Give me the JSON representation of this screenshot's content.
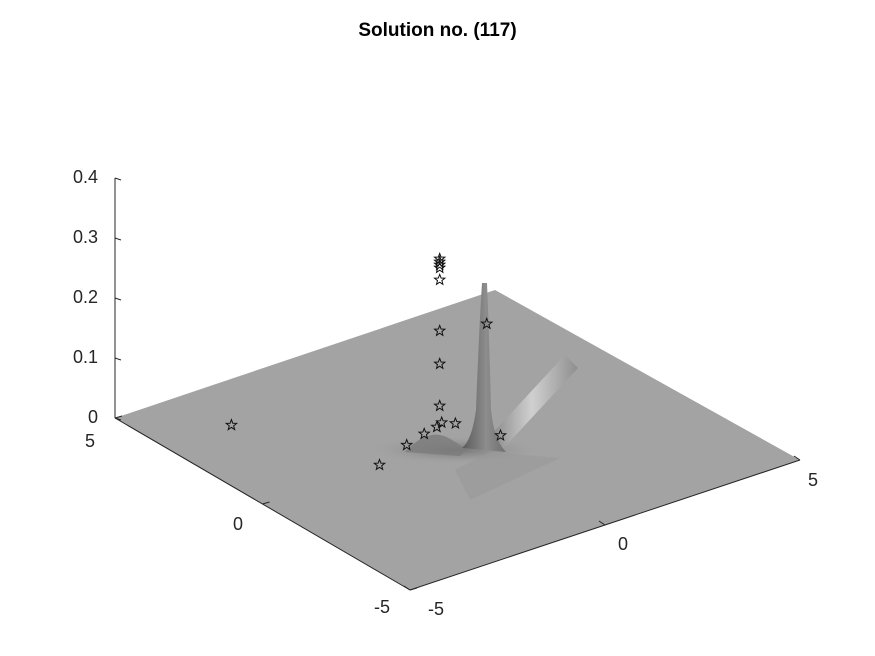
{
  "chart_data": {
    "type": "surface",
    "title": "Solution no. (117)",
    "xlabel": "",
    "ylabel": "",
    "zlabel": "",
    "x_range": [
      -5,
      5
    ],
    "y_range": [
      -5,
      5
    ],
    "z_range": [
      0,
      0.4
    ],
    "x_ticks": [
      "-5",
      "0",
      "5"
    ],
    "y_ticks": [
      "-5",
      "0",
      "5"
    ],
    "z_ticks": [
      "0",
      "0.1",
      "0.2",
      "0.3",
      "0.4"
    ],
    "surface_peak": {
      "x": 0.3,
      "y": 1.0,
      "z": 0.21
    },
    "colormap": "gray",
    "grid": false,
    "star_markers": [
      {
        "x": 0.3,
        "y": 1.0,
        "z": 0.265
      },
      {
        "x": 0.3,
        "y": 1.0,
        "z": 0.26
      },
      {
        "x": 0.3,
        "y": 1.0,
        "z": 0.255
      },
      {
        "x": 0.3,
        "y": 1.0,
        "z": 0.25
      },
      {
        "x": 0.3,
        "y": 1.0,
        "z": 0.23
      },
      {
        "x": 0.3,
        "y": 1.0,
        "z": 0.145
      },
      {
        "x": 0.3,
        "y": 1.0,
        "z": 0.09
      },
      {
        "x": 0.3,
        "y": 1.0,
        "z": 0.02
      },
      {
        "x": 0.4,
        "y": 0.6,
        "z": 0.0
      },
      {
        "x": 0.2,
        "y": 0.8,
        "z": 0.0
      },
      {
        "x": 0.0,
        "y": 0.7,
        "z": 0.0
      },
      {
        "x": -0.4,
        "y": 0.6,
        "z": 0.0
      },
      {
        "x": -1.0,
        "y": 0.4,
        "z": 0.0
      },
      {
        "x": -2.0,
        "y": 0.0,
        "z": 0.0
      },
      {
        "x": 0.8,
        "y": -0.4,
        "z": 0.0
      },
      {
        "x": -3.3,
        "y": 3.3,
        "z": 0.0
      },
      {
        "x": 3.7,
        "y": 3.9,
        "z": 0.0
      }
    ]
  }
}
